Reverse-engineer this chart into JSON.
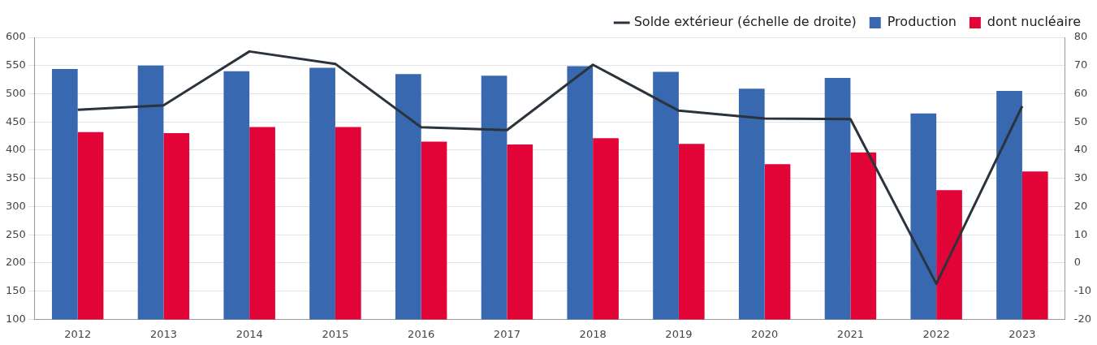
{
  "chart_data": {
    "type": "bar",
    "categories": [
      "2012",
      "2013",
      "2014",
      "2015",
      "2016",
      "2017",
      "2018",
      "2019",
      "2020",
      "2021",
      "2022",
      "2023"
    ],
    "series": [
      {
        "name": "Production",
        "color": "#3868b0",
        "values": [
          544,
          550,
          540,
          546,
          535,
          532,
          549,
          539,
          509,
          528,
          465,
          505
        ]
      },
      {
        "name": "dont nucléaire",
        "color": "#e20337",
        "values": [
          432,
          430,
          441,
          441,
          415,
          410,
          421,
          411,
          375,
          396,
          329,
          362
        ]
      },
      {
        "name": "Solde extérieur (échelle de droite)",
        "type": "line",
        "axis": "y2",
        "color": "#2b333d",
        "values": [
          54.3,
          55.9,
          75,
          70.6,
          48.1,
          47.1,
          70.3,
          54,
          51.2,
          51,
          -7.4,
          55.6
        ]
      }
    ],
    "ylim": [
      100,
      600
    ],
    "yticks": [
      100,
      150,
      200,
      250,
      300,
      350,
      400,
      450,
      500,
      550,
      600
    ],
    "y2lim": [
      -20,
      80
    ],
    "y2ticks": [
      -20,
      -10,
      0,
      10,
      20,
      30,
      40,
      50,
      60,
      70,
      80
    ],
    "grid": "y",
    "legend": "top right",
    "marker": "none"
  }
}
